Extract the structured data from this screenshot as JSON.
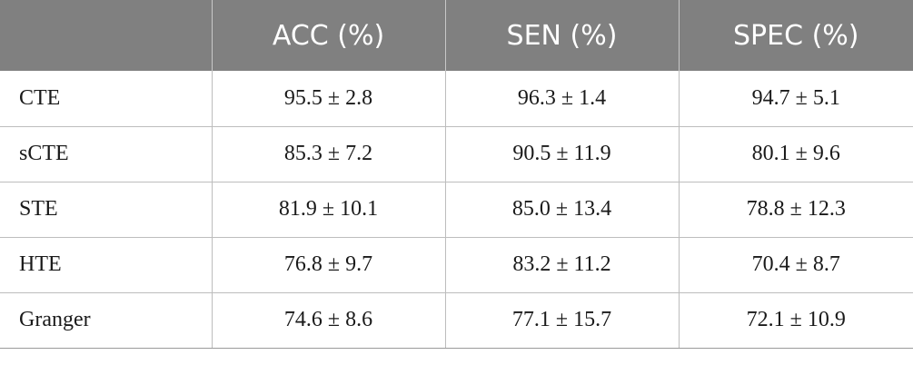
{
  "table": {
    "header": [
      "",
      "ACC (%)",
      "SEN (%)",
      "SPEC (%)"
    ],
    "rows": [
      [
        "CTE",
        "95.5 ± 2.8",
        "96.3 ± 1.4",
        "94.7 ± 5.1"
      ],
      [
        "sCTE",
        "85.3 ± 7.2",
        "90.5 ± 11.9",
        "80.1 ± 9.6"
      ],
      [
        "STE",
        "81.9 ± 10.1",
        "85.0 ± 13.4",
        "78.8 ± 12.3"
      ],
      [
        "HTE",
        "76.8 ± 9.7",
        "83.2 ± 11.2",
        "70.4 ± 8.7"
      ],
      [
        "Granger",
        "74.6 ± 8.6",
        "77.1 ± 15.7",
        "72.1 ± 10.9"
      ]
    ]
  },
  "colors": {
    "header_bg": "#808080",
    "header_text": "#ffffff",
    "grid_line": "#bdbdbd"
  }
}
